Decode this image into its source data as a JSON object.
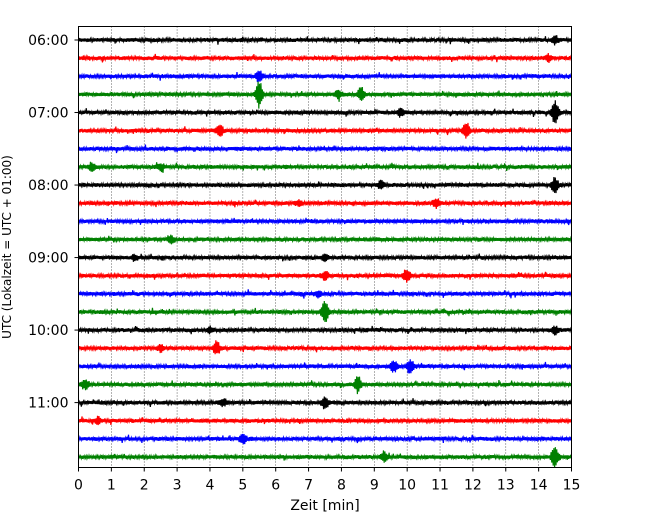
{
  "chart_data": {
    "type": "line",
    "title": "",
    "xlabel": "Zeit  [min]",
    "ylabel": "UTC (Lokalzeit = UTC + 01:00)",
    "xlim": [
      0,
      15
    ],
    "x_ticks": [
      "0",
      "1",
      "2",
      "3",
      "4",
      "5",
      "6",
      "7",
      "8",
      "9",
      "10",
      "11",
      "12",
      "13",
      "14",
      "15"
    ],
    "y_tick_labels": [
      "06:00",
      "07:00",
      "08:00",
      "09:00",
      "10:00",
      "11:00"
    ],
    "grid": "vertical-dotted",
    "trace_colors": [
      "#000000",
      "#ff0000",
      "#0000ff",
      "#008000"
    ],
    "traces": [
      {
        "start": "06:00",
        "color": "#000000",
        "events": [
          [
            14.5,
            0.3
          ]
        ]
      },
      {
        "start": "06:15",
        "color": "#ff0000",
        "events": [
          [
            14.3,
            0.25
          ]
        ]
      },
      {
        "start": "06:30",
        "color": "#0000ff",
        "events": [
          [
            5.5,
            0.4
          ]
        ]
      },
      {
        "start": "06:45",
        "color": "#008000",
        "events": [
          [
            5.5,
            1.0
          ],
          [
            8.6,
            0.5
          ],
          [
            7.9,
            0.3
          ]
        ]
      },
      {
        "start": "07:00",
        "color": "#000000",
        "events": [
          [
            14.5,
            0.9
          ],
          [
            9.8,
            0.3
          ]
        ]
      },
      {
        "start": "07:15",
        "color": "#ff0000",
        "events": [
          [
            4.3,
            0.5
          ],
          [
            11.8,
            0.6
          ]
        ]
      },
      {
        "start": "07:30",
        "color": "#0000ff",
        "events": []
      },
      {
        "start": "07:45",
        "color": "#008000",
        "events": [
          [
            0.4,
            0.3
          ],
          [
            2.5,
            0.25
          ]
        ]
      },
      {
        "start": "08:00",
        "color": "#000000",
        "events": [
          [
            14.5,
            0.6
          ],
          [
            9.2,
            0.25
          ]
        ]
      },
      {
        "start": "08:15",
        "color": "#ff0000",
        "events": [
          [
            10.9,
            0.35
          ],
          [
            6.7,
            0.2
          ]
        ]
      },
      {
        "start": "08:30",
        "color": "#0000ff",
        "events": []
      },
      {
        "start": "08:45",
        "color": "#008000",
        "events": [
          [
            2.8,
            0.3
          ]
        ]
      },
      {
        "start": "09:00",
        "color": "#000000",
        "events": [
          [
            7.5,
            0.25
          ],
          [
            1.7,
            0.2
          ]
        ]
      },
      {
        "start": "09:15",
        "color": "#ff0000",
        "events": [
          [
            10.0,
            0.5
          ],
          [
            7.5,
            0.3
          ]
        ]
      },
      {
        "start": "09:30",
        "color": "#0000ff",
        "events": [
          [
            7.3,
            0.2
          ]
        ]
      },
      {
        "start": "09:45",
        "color": "#008000",
        "events": [
          [
            7.5,
            0.9
          ]
        ]
      },
      {
        "start": "10:00",
        "color": "#000000",
        "events": [
          [
            14.5,
            0.3
          ],
          [
            4.0,
            0.2
          ]
        ]
      },
      {
        "start": "10:15",
        "color": "#ff0000",
        "events": [
          [
            4.2,
            0.5
          ],
          [
            2.5,
            0.25
          ]
        ]
      },
      {
        "start": "10:30",
        "color": "#0000ff",
        "events": [
          [
            9.6,
            0.45
          ],
          [
            10.1,
            0.55
          ]
        ]
      },
      {
        "start": "10:45",
        "color": "#008000",
        "events": [
          [
            8.5,
            0.6
          ],
          [
            0.2,
            0.4
          ]
        ]
      },
      {
        "start": "11:00",
        "color": "#000000",
        "events": [
          [
            7.5,
            0.5
          ],
          [
            4.4,
            0.3
          ]
        ]
      },
      {
        "start": "11:15",
        "color": "#ff0000",
        "events": [
          [
            0.6,
            0.25
          ]
        ]
      },
      {
        "start": "11:30",
        "color": "#0000ff",
        "events": [
          [
            5.0,
            0.4
          ]
        ]
      },
      {
        "start": "11:45",
        "color": "#008000",
        "events": [
          [
            14.5,
            0.9
          ],
          [
            9.3,
            0.4
          ]
        ]
      }
    ]
  }
}
